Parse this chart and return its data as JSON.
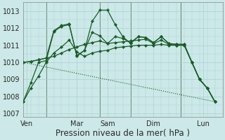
{
  "xlabel": "Pression niveau de la mer( hPa )",
  "background_color": "#cce8e8",
  "grid_color": "#aad0d0",
  "line_color": "#1a5c28",
  "ylim": [
    1006.8,
    1013.5
  ],
  "yticks": [
    1007,
    1008,
    1009,
    1010,
    1011,
    1012,
    1013
  ],
  "xlim": [
    0,
    26
  ],
  "x_day_labels": [
    "Ven",
    "Mar",
    "Sam",
    "Dim",
    "Lun"
  ],
  "x_day_positions": [
    0.5,
    7,
    11,
    17,
    23.5
  ],
  "vlines_x": [
    3,
    10,
    14,
    20.5
  ],
  "font_size_xlabel": 8.5,
  "font_size_ytick": 7,
  "font_size_xtick": 7,
  "series": [
    {
      "x": [
        0,
        1,
        2,
        3,
        4,
        5,
        6,
        7,
        8,
        9,
        10,
        11,
        12,
        13,
        14,
        15,
        16,
        17,
        18,
        19,
        20,
        21,
        22,
        23,
        24,
        25
      ],
      "y": [
        1007.7,
        1008.8,
        1010.0,
        1010.1,
        1011.8,
        1012.1,
        1012.2,
        1010.4,
        1010.7,
        1012.4,
        1013.05,
        1013.05,
        1012.2,
        1011.5,
        1011.1,
        1011.5,
        1011.45,
        1011.15,
        1011.5,
        1011.1,
        1011.05,
        1011.05,
        1010.0,
        1009.0,
        1008.5,
        1007.7
      ],
      "linestyle": "-",
      "linewidth": 0.9,
      "marker": "D",
      "markersize": 2.2
    },
    {
      "x": [
        0,
        1,
        2,
        3,
        4,
        5,
        6,
        7,
        8,
        9,
        10,
        11,
        12,
        13,
        14,
        15,
        16,
        17,
        18,
        19,
        20,
        21,
        22,
        23,
        24,
        25
      ],
      "y": [
        1010.0,
        1010.05,
        1010.15,
        1010.25,
        1011.85,
        1012.15,
        1012.25,
        1010.35,
        1010.7,
        1011.75,
        1011.55,
        1011.1,
        1011.5,
        1011.4,
        1011.15,
        1011.5,
        1011.45,
        1011.15,
        1011.5,
        1011.1,
        1011.05,
        1011.05,
        1010.0,
        1009.0,
        1008.5,
        1007.7
      ],
      "linestyle": "-",
      "linewidth": 0.9,
      "marker": "D",
      "markersize": 2.2
    },
    {
      "x": [
        0,
        1,
        2,
        3,
        4,
        5,
        6,
        7,
        8,
        9,
        10,
        11,
        12,
        13,
        14,
        15,
        16,
        17,
        18,
        19,
        20,
        21,
        22,
        23,
        24,
        25
      ],
      "y": [
        1010.0,
        1010.05,
        1010.15,
        1010.25,
        1010.35,
        1010.55,
        1010.75,
        1010.9,
        1011.05,
        1011.15,
        1011.25,
        1011.1,
        1011.15,
        1011.2,
        1011.25,
        1011.3,
        1011.35,
        1011.1,
        1011.3,
        1011.05,
        1011.0,
        1011.0,
        1010.0,
        1009.0,
        1008.5,
        1007.7
      ],
      "linestyle": "-",
      "linewidth": 0.9,
      "marker": "D",
      "markersize": 2.2
    },
    {
      "x": [
        0,
        25
      ],
      "y": [
        1010.0,
        1007.7
      ],
      "linestyle": "dotted",
      "linewidth": 0.8,
      "marker": null,
      "markersize": 0
    },
    {
      "x": [
        0,
        1,
        2,
        3,
        4,
        5,
        6,
        7,
        8,
        9,
        10,
        11,
        12,
        13,
        14,
        15,
        16,
        17,
        18,
        19,
        20,
        21,
        22,
        23,
        24,
        25
      ],
      "y": [
        1007.7,
        1008.5,
        1009.2,
        1010.0,
        1010.55,
        1010.9,
        1011.3,
        1010.6,
        1010.35,
        1010.55,
        1010.65,
        1010.7,
        1010.85,
        1010.9,
        1010.95,
        1011.0,
        1011.0,
        1011.0,
        1011.05,
        1011.0,
        1011.0,
        1011.0,
        1010.0,
        1009.0,
        1008.5,
        1007.7
      ],
      "linestyle": "-",
      "linewidth": 0.9,
      "marker": "D",
      "markersize": 2.2
    }
  ]
}
